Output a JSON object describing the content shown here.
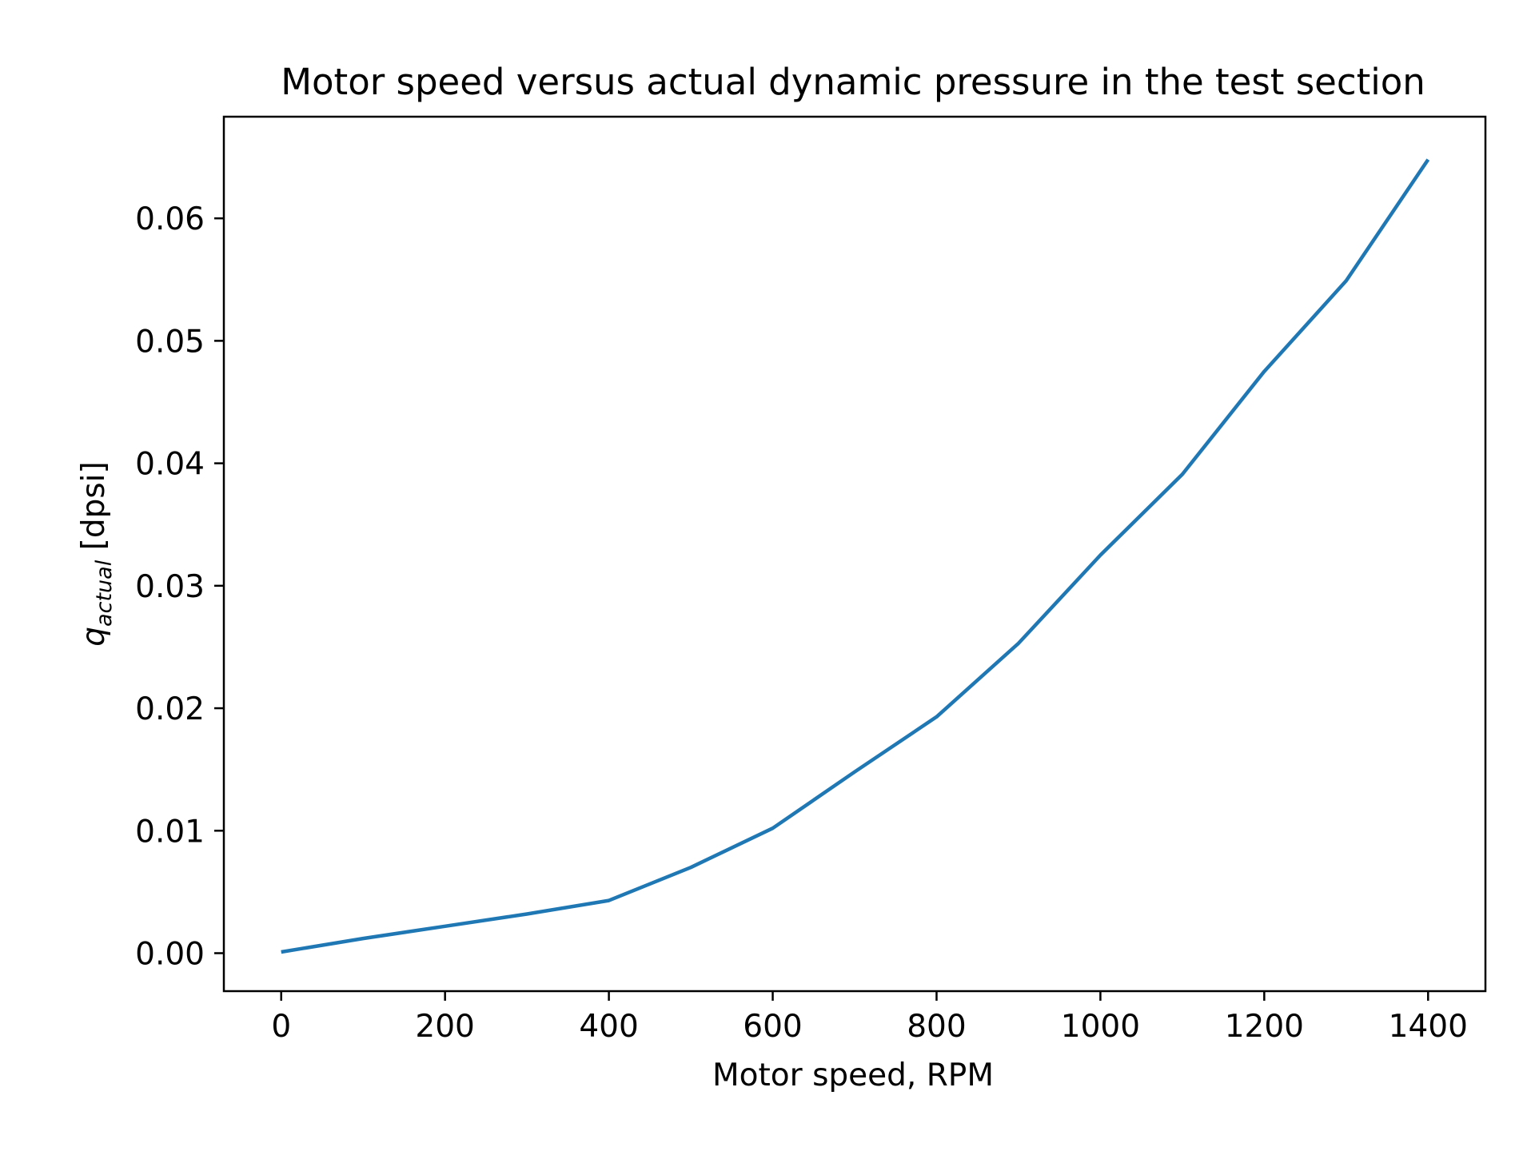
{
  "chart_data": {
    "type": "line",
    "title": "Motor speed versus actual dynamic pressure in the test section",
    "xlabel": "Motor speed, RPM",
    "ylabel": {
      "symbol": "q",
      "subscript": "actual",
      "unit": " [dpsi]"
    },
    "xlim": [
      -70,
      1470
    ],
    "ylim": [
      -0.0031,
      0.0683
    ],
    "xticks": [
      0,
      200,
      400,
      600,
      800,
      1000,
      1200,
      1400
    ],
    "xtick_labels": [
      "0",
      "200",
      "400",
      "600",
      "800",
      "1000",
      "1200",
      "1400"
    ],
    "yticks": [
      0.0,
      0.01,
      0.02,
      0.03,
      0.04,
      0.05,
      0.06
    ],
    "ytick_labels": [
      "0.00",
      "0.01",
      "0.02",
      "0.03",
      "0.04",
      "0.05",
      "0.06"
    ],
    "grid": false,
    "series": [
      {
        "color": "#1f77b4",
        "x": [
          0,
          100,
          200,
          300,
          400,
          500,
          600,
          700,
          800,
          900,
          1000,
          1100,
          1200,
          1300,
          1400
        ],
        "y": [
          0.0001,
          0.0012,
          0.0022,
          0.0032,
          0.0043,
          0.007,
          0.0102,
          0.0148,
          0.0193,
          0.0253,
          0.0325,
          0.0391,
          0.0475,
          0.0549,
          0.0648
        ]
      }
    ]
  }
}
